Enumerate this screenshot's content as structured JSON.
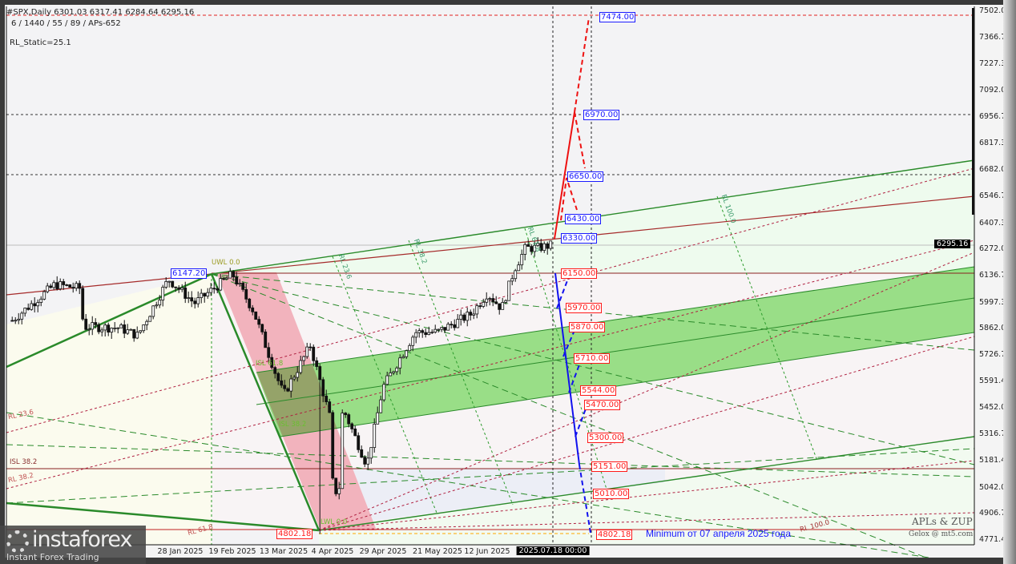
{
  "header": {
    "symbol_line": "#SPX,Daily  6301.03 6317.41 6284.64 6295.16",
    "params_line": "6 / 1440 / 55 / 89 / APs-652",
    "indicator_line": "RL_Static=25.1"
  },
  "price_axis": {
    "ticks": [
      "7502.02",
      "7366.72",
      "7227.32",
      "7092.02",
      "6956.72",
      "6817.32",
      "6682.02",
      "6546.72",
      "6407.32",
      "6272.02",
      "6136.72",
      "5997.32",
      "5862.02",
      "5726.72",
      "5591.42",
      "5452.02",
      "5316.72",
      "5181.42",
      "5042.02",
      "4906.72",
      "4771.42"
    ],
    "current_price": "6295.16"
  },
  "time_axis": {
    "ticks": [
      "28 Jan 2025",
      "19 Feb 2025",
      "13 Mar 2025",
      "4 Apr 2025",
      "29 Apr 2025",
      "21 May 2025",
      "12 Jun 2025"
    ],
    "cursor_label": "2025.07.18 00:00"
  },
  "levels": {
    "up": [
      "7474.00",
      "6970.00",
      "6650.00",
      "6430.00",
      "6330.00"
    ],
    "down": [
      "6150.00",
      "5970.00",
      "5870.00",
      "5710.00",
      "5544.00",
      "5470.00",
      "5300.00",
      "5151.00",
      "5010.00",
      "4802.18"
    ],
    "high_marker": "6147.20",
    "low_marker": "4802.18"
  },
  "fib_labels": {
    "uwl": "UWL 0.0",
    "lwl": "LWL 0.0",
    "rl236_left": "RL 23.6",
    "isl382_left": "ISL 38.2",
    "rl382_left": "RL 38.2",
    "rl618_left": "RL 61.8",
    "isl618": "ISL 61.8",
    "isl382": "ISL 38.2",
    "rl236_diag": "RL 23.6",
    "rl382_diag": "RL 38.2",
    "rl618_diag": "RL 61.8",
    "rl100_diag": "RL 100.0",
    "rl100_bottom": "RL 100.0"
  },
  "annotation": "Minimum от 07 апреля 2025 года",
  "watermark": {
    "title": "APLs & ZUP",
    "author": "Gelox @ mt5.com"
  },
  "logo": {
    "name": "instaforex",
    "tagline": "Instant Forex Trading"
  },
  "colors": {
    "up_level": "#1a1aff",
    "down_level": "#ff1a1a",
    "channel": "#9de88d",
    "pink_zone": "#f2b3bd",
    "trend_red": "#a52a2a",
    "trend_green": "#2a8a2a"
  },
  "chart_data": {
    "type": "line",
    "title": "#SPX,Daily",
    "last_bar": {
      "open": 6301.03,
      "high": 6317.41,
      "low": 6284.64,
      "close": 6295.16
    },
    "x": [
      "2024-11-18",
      "2024-12-06",
      "2024-12-17",
      "2024-12-18",
      "2025-01-02",
      "2025-01-10",
      "2025-01-23",
      "2025-02-03",
      "2025-02-19",
      "2025-02-28",
      "2025-03-10",
      "2025-03-13",
      "2025-03-25",
      "2025-04-03",
      "2025-04-04",
      "2025-04-07",
      "2025-04-09",
      "2025-04-21",
      "2025-04-29",
      "2025-05-12",
      "2025-05-21",
      "2025-06-05",
      "2025-06-12",
      "2025-06-20",
      "2025-06-27",
      "2025-07-03",
      "2025-07-10",
      "2025-07-18"
    ],
    "y": [
      5905,
      6091,
      6070,
      5872,
      5868,
      5827,
      6118,
      5994,
      6144,
      5955,
      5615,
      5521,
      5776,
      5396,
      5074,
      4982,
      5456,
      5158,
      5560,
      5844,
      5845,
      5939,
      6045,
      5967,
      6173,
      6279,
      6280,
      6295.16
    ],
    "ylim": [
      4771.42,
      7502.02
    ],
    "grid": false
  }
}
